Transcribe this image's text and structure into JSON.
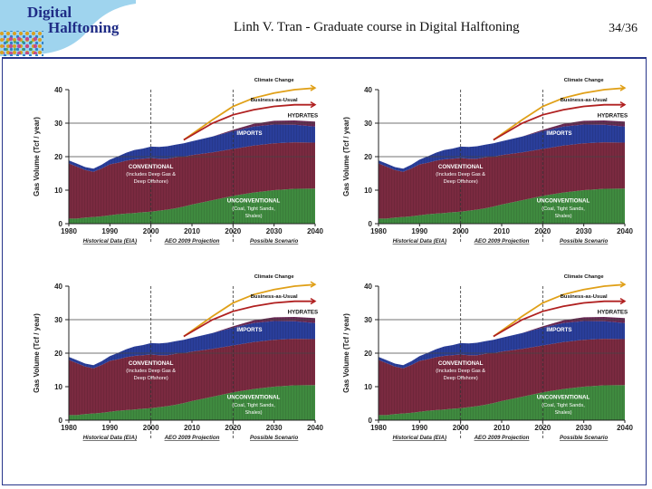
{
  "header": {
    "logo_line1": "Digital",
    "logo_line2": "Halftoning",
    "title": "Linh V. Tran  -  Graduate course in Digital Halftoning",
    "page": "34/36"
  },
  "colors": {
    "frame": "#27358a",
    "conventional": "#7a2a40",
    "unconventional": "#3f8a3f",
    "imports": "#2a3e9a",
    "hydrates": "#6a2a55",
    "climate_change": "#e0a018",
    "business_as_usual": "#b02020"
  },
  "chart_data": [
    {
      "type": "area",
      "stacked": true,
      "x": [
        1980,
        1982,
        1984,
        1986,
        1988,
        1990,
        1992,
        1994,
        1996,
        1998,
        2000,
        2002,
        2004,
        2006,
        2008,
        2010,
        2015,
        2020,
        2025,
        2030,
        2035,
        2040
      ],
      "series": [
        {
          "name": "Unconventional (Coal, Tight Sands, Shales)",
          "values": [
            1.5,
            1.5,
            1.8,
            2,
            2.2,
            2.5,
            2.8,
            3,
            3.2,
            3.4,
            3.6,
            3.9,
            4.2,
            4.6,
            5.1,
            5.7,
            7,
            8.3,
            9.3,
            10,
            10.4,
            10.5
          ]
        },
        {
          "name": "Conventional (Includes Deep Gas & Deep Offshore)",
          "values": [
            16.5,
            15.5,
            14.2,
            13.5,
            14.3,
            15.2,
            15.4,
            15.8,
            16,
            16,
            16,
            15.5,
            15.2,
            15.2,
            14.9,
            14.8,
            14.3,
            14,
            14,
            14,
            13.9,
            13.7
          ]
        },
        {
          "name": "Imports",
          "values": [
            0.9,
            0.9,
            0.9,
            0.9,
            1.1,
            1.4,
            1.9,
            2.4,
            2.8,
            3,
            3.4,
            3.5,
            3.7,
            3.8,
            4,
            4.1,
            4.7,
            5.3,
            5.7,
            5.6,
            5.2,
            4.8
          ]
        },
        {
          "name": "Hydrates",
          "values": [
            0,
            0,
            0,
            0,
            0,
            0,
            0,
            0,
            0,
            0,
            0,
            0,
            0,
            0,
            0,
            0,
            0,
            0.4,
            0.8,
            1.1,
            1.3,
            1.5
          ]
        }
      ],
      "scenarios": [
        {
          "name": "Climate Change",
          "x": [
            2008,
            2015,
            2020,
            2025,
            2030,
            2035,
            2040
          ],
          "values": [
            25,
            31,
            35,
            37.5,
            39,
            40,
            40.5
          ]
        },
        {
          "name": "Business-as-Usual",
          "x": [
            2008,
            2015,
            2020,
            2025,
            2030,
            2035,
            2040
          ],
          "values": [
            25,
            30,
            32.5,
            34,
            35,
            35.5,
            35.5
          ]
        }
      ],
      "series_labels": {
        "hydrates": "HYDRATES",
        "imports": "IMPORTS",
        "conventional_1": "CONVENTIONAL",
        "conventional_2": "(Includes Deep Gas &",
        "conventional_3": "Deep Offshore)",
        "unconventional_1": "UNCONVENTIONAL",
        "unconventional_2": "(Coal, Tight Sands,",
        "unconventional_3": "Shales)",
        "climate": "Climate Change",
        "bau": "Business-as-Usual"
      },
      "ylabel": "Gas Volume (Tcf / year)",
      "ylim": [
        0,
        40
      ],
      "yticks": [
        "0",
        "10",
        "20",
        "30",
        "40"
      ],
      "xlim": [
        1980,
        2040
      ],
      "xticks": [
        "1980",
        "1990",
        "2000",
        "2010",
        "2020",
        "2030",
        "2040"
      ],
      "dividers": [
        2000,
        2020
      ],
      "gridlines": [
        20,
        30
      ],
      "periods": [
        "Historical Data (EIA)",
        "AEO 2009 Projection",
        "Possible Scenario"
      ]
    },
    {
      "type": "area",
      "stacked": true,
      "x": [
        1980,
        1982,
        1984,
        1986,
        1988,
        1990,
        1992,
        1994,
        1996,
        1998,
        2000,
        2002,
        2004,
        2006,
        2008,
        2010,
        2015,
        2020,
        2025,
        2030,
        2035,
        2040
      ],
      "series": [
        {
          "name": "Unconventional (Coal, Tight Sands, Shales)",
          "values": [
            1.5,
            1.5,
            1.8,
            2,
            2.2,
            2.5,
            2.8,
            3,
            3.2,
            3.4,
            3.6,
            3.9,
            4.2,
            4.6,
            5.1,
            5.7,
            7,
            8.3,
            9.3,
            10,
            10.4,
            10.5
          ]
        },
        {
          "name": "Conventional (Includes Deep Gas & Deep Offshore)",
          "values": [
            16.5,
            15.5,
            14.2,
            13.5,
            14.3,
            15.2,
            15.4,
            15.8,
            16,
            16,
            16,
            15.5,
            15.2,
            15.2,
            14.9,
            14.8,
            14.3,
            14,
            14,
            14,
            13.9,
            13.7
          ]
        },
        {
          "name": "Imports",
          "values": [
            0.9,
            0.9,
            0.9,
            0.9,
            1.1,
            1.4,
            1.9,
            2.4,
            2.8,
            3,
            3.4,
            3.5,
            3.7,
            3.8,
            4,
            4.1,
            4.7,
            5.3,
            5.7,
            5.6,
            5.2,
            4.8
          ]
        },
        {
          "name": "Hydrates",
          "values": [
            0,
            0,
            0,
            0,
            0,
            0,
            0,
            0,
            0,
            0,
            0,
            0,
            0,
            0,
            0,
            0,
            0,
            0.4,
            0.8,
            1.1,
            1.3,
            1.5
          ]
        }
      ],
      "scenarios": [
        {
          "name": "Climate Change",
          "x": [
            2008,
            2015,
            2020,
            2025,
            2030,
            2035,
            2040
          ],
          "values": [
            25,
            31,
            35,
            37.5,
            39,
            40,
            40.5
          ]
        },
        {
          "name": "Business-as-Usual",
          "x": [
            2008,
            2015,
            2020,
            2025,
            2030,
            2035,
            2040
          ],
          "values": [
            25,
            30,
            32.5,
            34,
            35,
            35.5,
            35.5
          ]
        }
      ],
      "series_labels": {
        "hydrates": "HYDRATES",
        "imports": "IMPORTS",
        "conventional_1": "CONVENTIONAL",
        "conventional_2": "(Includes Deep Gas &",
        "conventional_3": "Deep Offshore)",
        "unconventional_1": "UNCONVENTIONAL",
        "unconventional_2": "(Coal, Tight Sands,",
        "unconventional_3": "Shales)",
        "climate": "Climate Change",
        "bau": "Business-as-Usual"
      },
      "ylabel": "Gas Volume (Tcf / year)",
      "ylim": [
        0,
        40
      ],
      "yticks": [
        "0",
        "10",
        "20",
        "30",
        "40"
      ],
      "xlim": [
        1980,
        2040
      ],
      "xticks": [
        "1980",
        "1990",
        "2000",
        "2010",
        "2020",
        "2030",
        "2040"
      ],
      "dividers": [
        2000,
        2020
      ],
      "gridlines": [
        20,
        30
      ],
      "periods": [
        "Historical Data (EIA)",
        "AEO 2009 Projection",
        "Possible Scenario"
      ]
    },
    {
      "type": "area",
      "stacked": true,
      "x": [
        1980,
        1982,
        1984,
        1986,
        1988,
        1990,
        1992,
        1994,
        1996,
        1998,
        2000,
        2002,
        2004,
        2006,
        2008,
        2010,
        2015,
        2020,
        2025,
        2030,
        2035,
        2040
      ],
      "series": [
        {
          "name": "Unconventional (Coal, Tight Sands, Shales)",
          "values": [
            1.5,
            1.5,
            1.8,
            2,
            2.2,
            2.5,
            2.8,
            3,
            3.2,
            3.4,
            3.6,
            3.9,
            4.2,
            4.6,
            5.1,
            5.7,
            7,
            8.3,
            9.3,
            10,
            10.4,
            10.5
          ]
        },
        {
          "name": "Conventional (Includes Deep Gas & Deep Offshore)",
          "values": [
            16.5,
            15.5,
            14.2,
            13.5,
            14.3,
            15.2,
            15.4,
            15.8,
            16,
            16,
            16,
            15.5,
            15.2,
            15.2,
            14.9,
            14.8,
            14.3,
            14,
            14,
            14,
            13.9,
            13.7
          ]
        },
        {
          "name": "Imports",
          "values": [
            0.9,
            0.9,
            0.9,
            0.9,
            1.1,
            1.4,
            1.9,
            2.4,
            2.8,
            3,
            3.4,
            3.5,
            3.7,
            3.8,
            4,
            4.1,
            4.7,
            5.3,
            5.7,
            5.6,
            5.2,
            4.8
          ]
        },
        {
          "name": "Hydrates",
          "values": [
            0,
            0,
            0,
            0,
            0,
            0,
            0,
            0,
            0,
            0,
            0,
            0,
            0,
            0,
            0,
            0,
            0,
            0.4,
            0.8,
            1.1,
            1.3,
            1.5
          ]
        }
      ],
      "scenarios": [
        {
          "name": "Climate Change",
          "x": [
            2008,
            2015,
            2020,
            2025,
            2030,
            2035,
            2040
          ],
          "values": [
            25,
            31,
            35,
            37.5,
            39,
            40,
            40.5
          ]
        },
        {
          "name": "Business-as-Usual",
          "x": [
            2008,
            2015,
            2020,
            2025,
            2030,
            2035,
            2040
          ],
          "values": [
            25,
            30,
            32.5,
            34,
            35,
            35.5,
            35.5
          ]
        }
      ],
      "series_labels": {
        "hydrates": "HYDRATES",
        "imports": "IMPORTS",
        "conventional_1": "CONVENTIONAL",
        "conventional_2": "(Includes Deep Gas &",
        "conventional_3": "Deep Offshore)",
        "unconventional_1": "UNCONVENTIONAL",
        "unconventional_2": "(Coal, Tight Sands,",
        "unconventional_3": "Shales)",
        "climate": "Climate Change",
        "bau": "Business-as-Usual"
      },
      "ylabel": "Gas Volume (Tcf / year)",
      "ylim": [
        0,
        40
      ],
      "yticks": [
        "0",
        "10",
        "20",
        "30",
        "40"
      ],
      "xlim": [
        1980,
        2040
      ],
      "xticks": [
        "1980",
        "1990",
        "2000",
        "2010",
        "2020",
        "2030",
        "2040"
      ],
      "dividers": [
        2000,
        2020
      ],
      "gridlines": [
        20,
        30
      ],
      "periods": [
        "Historical Data (EIA)",
        "AEO 2009 Projection",
        "Possible Scenario"
      ]
    },
    {
      "type": "area",
      "stacked": true,
      "x": [
        1980,
        1982,
        1984,
        1986,
        1988,
        1990,
        1992,
        1994,
        1996,
        1998,
        2000,
        2002,
        2004,
        2006,
        2008,
        2010,
        2015,
        2020,
        2025,
        2030,
        2035,
        2040
      ],
      "series": [
        {
          "name": "Unconventional (Coal, Tight Sands, Shales)",
          "values": [
            1.5,
            1.5,
            1.8,
            2,
            2.2,
            2.5,
            2.8,
            3,
            3.2,
            3.4,
            3.6,
            3.9,
            4.2,
            4.6,
            5.1,
            5.7,
            7,
            8.3,
            9.3,
            10,
            10.4,
            10.5
          ]
        },
        {
          "name": "Conventional (Includes Deep Gas & Deep Offshore)",
          "values": [
            16.5,
            15.5,
            14.2,
            13.5,
            14.3,
            15.2,
            15.4,
            15.8,
            16,
            16,
            16,
            15.5,
            15.2,
            15.2,
            14.9,
            14.8,
            14.3,
            14,
            14,
            14,
            13.9,
            13.7
          ]
        },
        {
          "name": "Imports",
          "values": [
            0.9,
            0.9,
            0.9,
            0.9,
            1.1,
            1.4,
            1.9,
            2.4,
            2.8,
            3,
            3.4,
            3.5,
            3.7,
            3.8,
            4,
            4.1,
            4.7,
            5.3,
            5.7,
            5.6,
            5.2,
            4.8
          ]
        },
        {
          "name": "Hydrates",
          "values": [
            0,
            0,
            0,
            0,
            0,
            0,
            0,
            0,
            0,
            0,
            0,
            0,
            0,
            0,
            0,
            0,
            0,
            0.4,
            0.8,
            1.1,
            1.3,
            1.5
          ]
        }
      ],
      "scenarios": [
        {
          "name": "Climate Change",
          "x": [
            2008,
            2015,
            2020,
            2025,
            2030,
            2035,
            2040
          ],
          "values": [
            25,
            31,
            35,
            37.5,
            39,
            40,
            40.5
          ]
        },
        {
          "name": "Business-as-Usual",
          "x": [
            2008,
            2015,
            2020,
            2025,
            2030,
            2035,
            2040
          ],
          "values": [
            25,
            30,
            32.5,
            34,
            35,
            35.5,
            35.5
          ]
        }
      ],
      "series_labels": {
        "hydrates": "HYDRATES",
        "imports": "IMPORTS",
        "conventional_1": "CONVENTIONAL",
        "conventional_2": "(Includes Deep Gas &",
        "conventional_3": "Deep Offshore)",
        "unconventional_1": "UNCONVENTIONAL",
        "unconventional_2": "(Coal, Tight Sands,",
        "unconventional_3": "Shales)",
        "climate": "Climate Change",
        "bau": "Business-as-Usual"
      },
      "ylabel": "Gas Volume (Tcf / year)",
      "ylim": [
        0,
        40
      ],
      "yticks": [
        "0",
        "10",
        "20",
        "30",
        "40"
      ],
      "xlim": [
        1980,
        2040
      ],
      "xticks": [
        "1980",
        "1990",
        "2000",
        "2010",
        "2020",
        "2030",
        "2040"
      ],
      "dividers": [
        2000,
        2020
      ],
      "gridlines": [
        20,
        30
      ],
      "periods": [
        "Historical Data (EIA)",
        "AEO 2009 Projection",
        "Possible Scenario"
      ]
    }
  ]
}
